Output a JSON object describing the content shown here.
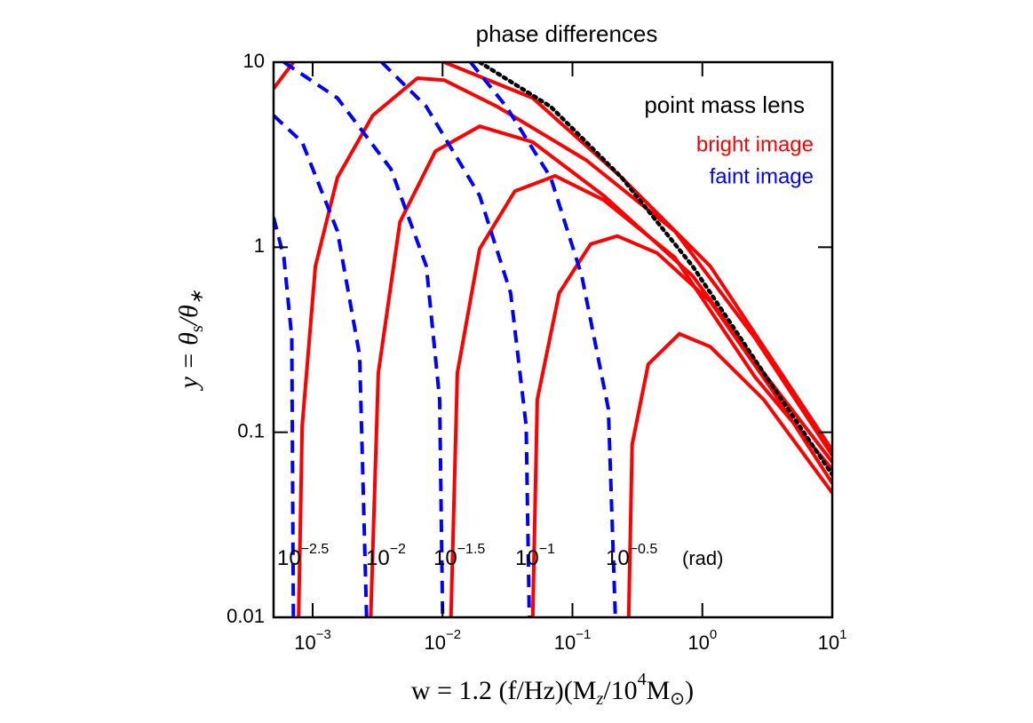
{
  "chart_data": {
    "type": "line",
    "title": "phase differences",
    "xlabel": [
      "w = 1.2 (f/Hz)(M",
      "z",
      "/10",
      "4",
      "M",
      "⊙",
      ")"
    ],
    "ylabel": [
      "y = θ",
      "s",
      "/θ",
      "∗"
    ],
    "xscale": "log",
    "yscale": "log",
    "xlim": [
      0.0005,
      10
    ],
    "ylim": [
      0.01,
      10
    ],
    "xticks": [
      {
        "value": 0.001,
        "label": "10",
        "exponent": "−3"
      },
      {
        "value": 0.01,
        "label": "10",
        "exponent": "−2"
      },
      {
        "value": 0.1,
        "label": "10",
        "exponent": "−1"
      },
      {
        "value": 1,
        "label": "10",
        "exponent": "0"
      },
      {
        "value": 10,
        "label": "10",
        "exponent": "1"
      }
    ],
    "yticks": [
      0.01,
      0.1,
      1,
      10
    ],
    "annotation": "point mass lens",
    "legend": [
      {
        "label": "bright image",
        "color": "#ff0000"
      },
      {
        "label": "faint image",
        "color": "#0000ff"
      }
    ],
    "phase_labels": [
      {
        "base": "10",
        "exponent": "−2.5"
      },
      {
        "base": "10",
        "exponent": "−2"
      },
      {
        "base": "10",
        "exponent": "−1.5"
      },
      {
        "base": "10",
        "exponent": "−1"
      },
      {
        "base": "10",
        "exponent": "−0.5"
      }
    ],
    "unit_label": "(rad)",
    "series": [
      {
        "color": "#ff0000",
        "style": "solid",
        "x": [
          0.0005,
          0.00071,
          0.003,
          0.0103,
          0.0495,
          0.239,
          1.15,
          10
        ],
        "values": [
          7.2,
          10,
          null,
          10,
          6.4,
          2.38,
          0.79,
          0.08
        ]
      },
      {
        "color": "#ff0000",
        "style": "solid",
        "x": [
          0.00078,
          0.00083,
          0.00105,
          0.00155,
          0.0029,
          0.0064,
          0.0103,
          0.0264,
          0.127,
          0.614,
          2.53,
          10
        ],
        "values": [
          0.01,
          0.108,
          0.79,
          2.38,
          5.15,
          8.2,
          8.0,
          5.75,
          2.96,
          1.22,
          0.325,
          0.075
        ]
      },
      {
        "color": "#ff0000",
        "style": "solid",
        "x": [
          0.0028,
          0.0032,
          0.0047,
          0.0088,
          0.0193,
          0.0495,
          0.174,
          0.841,
          2.97,
          10
        ],
        "values": [
          0.01,
          0.209,
          1.37,
          3.3,
          4.5,
          3.7,
          1.9,
          0.7,
          0.209,
          0.069
        ]
      },
      {
        "color": "#ff0000",
        "style": "solid",
        "x": [
          0.0116,
          0.013,
          0.0193,
          0.036,
          0.0734,
          0.174,
          0.614,
          2.53,
          10
        ],
        "values": [
          0.01,
          0.209,
          0.98,
          2.01,
          2.43,
          1.8,
          0.88,
          0.2,
          0.063
        ]
      },
      {
        "color": "#ff0000",
        "style": "solid",
        "x": [
          0.0495,
          0.0536,
          0.079,
          0.138,
          0.221,
          0.449,
          1.15,
          3.47,
          10
        ],
        "values": [
          0.01,
          0.15,
          0.565,
          1.04,
          1.15,
          0.93,
          0.51,
          0.168,
          0.053
        ]
      },
      {
        "color": "#ff0000",
        "style": "solid",
        "x": [
          0.271,
          0.288,
          0.383,
          0.665,
          1.15,
          2.97,
          10
        ],
        "values": [
          0.01,
          0.086,
          0.233,
          0.34,
          0.29,
          0.15,
          0.047
        ]
      },
      {
        "color": "#0000ff",
        "style": "dashed",
        "x": [
          0.0005,
          0.0006,
          0.00069,
          0.00071
        ],
        "values": [
          1.45,
          0.88,
          0.325,
          0.01
        ]
      },
      {
        "color": "#0000ff",
        "style": "dashed",
        "x": [
          0.0005,
          0.00083,
          0.00155,
          0.0023,
          0.0026
        ],
        "values": [
          5.15,
          3.7,
          1.22,
          0.26,
          0.01
        ]
      },
      {
        "color": "#0000ff",
        "style": "dashed",
        "x": [
          0.0006,
          0.00155,
          0.004,
          0.0075,
          0.0095,
          0.01
        ],
        "values": [
          10,
          6.4,
          2.65,
          0.79,
          0.15,
          0.01
        ]
      },
      {
        "color": "#0000ff",
        "style": "dashed",
        "x": [
          0.0034,
          0.0075,
          0.0193,
          0.0334,
          0.044,
          0.0465
        ],
        "values": [
          10,
          5.75,
          1.9,
          0.565,
          0.108,
          0.01
        ]
      },
      {
        "color": "#0000ff",
        "style": "dashed",
        "x": [
          0.0164,
          0.031,
          0.068,
          0.118,
          0.189,
          0.214
        ],
        "values": [
          10,
          5.75,
          2.38,
          0.7,
          0.134,
          0.01
        ]
      },
      {
        "color": "#000000",
        "style": "dotted",
        "x": [
          0.0193,
          0.068,
          0.239,
          0.841,
          2.97,
          10
        ],
        "values": [
          10,
          5.75,
          2.38,
          0.79,
          0.209,
          0.059
        ]
      }
    ]
  }
}
